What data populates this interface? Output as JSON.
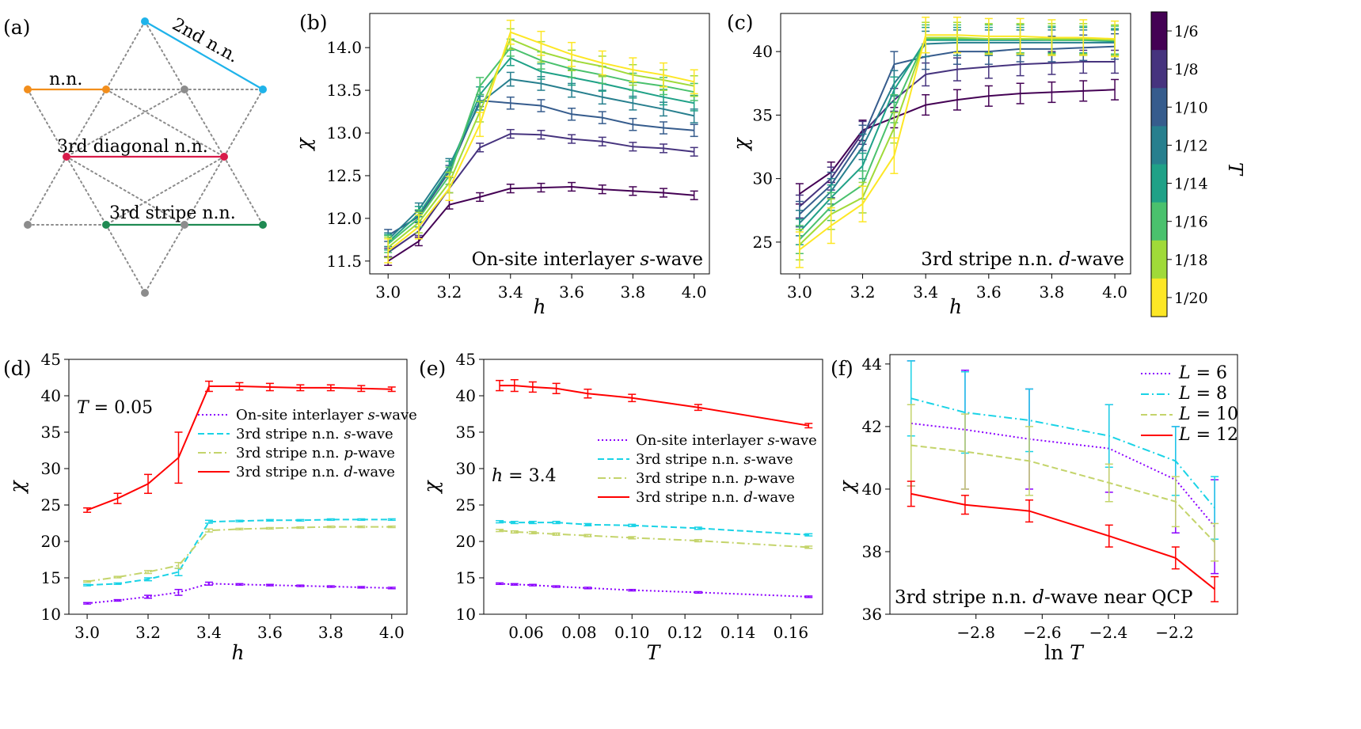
{
  "lattice": {
    "panel_label": "(a)",
    "labels": {
      "nn": "n.n.",
      "nn2": "2nd n.n.",
      "diag3": "3rd diagonal n.n.",
      "stripe3": "3rd stripe n.n."
    },
    "colors": {
      "nn": "#f28e1c",
      "nn2": "#1fb3ea",
      "diag3": "#d81b4a",
      "stripe3": "#1f8a52",
      "site": "#8c8c8c",
      "bond": "#8c8c8c"
    }
  },
  "colorbar": {
    "label": "T",
    "ticks": [
      "1/6",
      "1/8",
      "1/10",
      "1/12",
      "1/14",
      "1/16",
      "1/18",
      "1/20"
    ],
    "colors": [
      "#440154",
      "#46337e",
      "#365c8d",
      "#277f8e",
      "#1fa187",
      "#4ac16d",
      "#a0da39",
      "#fde725"
    ]
  },
  "chart_data": [
    {
      "panel": "(b)",
      "type": "line",
      "annotation": "On-site interlayer s-wave",
      "xlabel": "h",
      "ylabel": "χ",
      "x": [
        3.0,
        3.1,
        3.2,
        3.3,
        3.4,
        3.5,
        3.6,
        3.7,
        3.8,
        3.9,
        4.0
      ],
      "xlim": [
        2.94,
        4.05
      ],
      "ylim": [
        11.35,
        14.4
      ],
      "xticks": [
        "3.0",
        "3.2",
        "3.4",
        "3.6",
        "3.8",
        "4.0"
      ],
      "yticks": [
        "11.5",
        "12.0",
        "12.5",
        "13.0",
        "13.5",
        "14.0"
      ],
      "series": [
        {
          "T": "1/6",
          "values": [
            11.5,
            11.73,
            12.16,
            12.25,
            12.35,
            12.36,
            12.37,
            12.34,
            12.32,
            12.3,
            12.27
          ],
          "err": 0.05
        },
        {
          "T": "1/8",
          "values": [
            11.6,
            11.85,
            12.35,
            12.83,
            12.99,
            12.98,
            12.93,
            12.9,
            12.84,
            12.82,
            12.78
          ],
          "err": 0.05
        },
        {
          "T": "1/10",
          "values": [
            11.8,
            12.02,
            12.55,
            13.38,
            13.35,
            13.32,
            13.22,
            13.18,
            13.1,
            13.06,
            13.03
          ],
          "err": 0.07
        },
        {
          "T": "1/12",
          "values": [
            11.75,
            12.1,
            12.62,
            13.35,
            13.63,
            13.58,
            13.5,
            13.42,
            13.35,
            13.28,
            13.2
          ],
          "err": 0.08
        },
        {
          "T": "1/14",
          "values": [
            11.72,
            12.05,
            12.58,
            13.45,
            13.88,
            13.72,
            13.65,
            13.58,
            13.5,
            13.42,
            13.35
          ],
          "err": 0.09
        },
        {
          "T": "1/16",
          "values": [
            11.7,
            12.0,
            12.5,
            13.55,
            14.0,
            13.85,
            13.75,
            13.68,
            13.6,
            13.55,
            13.48
          ],
          "err": 0.1
        },
        {
          "T": "1/18",
          "values": [
            11.66,
            11.95,
            12.42,
            13.25,
            14.1,
            13.95,
            13.85,
            13.78,
            13.68,
            13.62,
            13.55
          ],
          "err": 0.12
        },
        {
          "T": "1/20",
          "values": [
            11.62,
            11.9,
            12.35,
            13.1,
            14.18,
            14.05,
            13.92,
            13.82,
            13.74,
            13.68,
            13.6
          ],
          "err": 0.14
        }
      ]
    },
    {
      "panel": "(c)",
      "type": "line",
      "annotation": "3rd stripe n.n. d-wave",
      "xlabel": "h",
      "ylabel": "χ",
      "x": [
        3.0,
        3.1,
        3.2,
        3.3,
        3.4,
        3.5,
        3.6,
        3.7,
        3.8,
        3.9,
        4.0
      ],
      "xlim": [
        2.94,
        4.05
      ],
      "ylim": [
        22.5,
        43.0
      ],
      "xticks": [
        "3.0",
        "3.2",
        "3.4",
        "3.6",
        "3.8",
        "4.0"
      ],
      "yticks": [
        "25",
        "30",
        "35",
        "40"
      ],
      "series": [
        {
          "T": "1/6",
          "values": [
            28.8,
            30.5,
            33.8,
            34.8,
            35.8,
            36.2,
            36.5,
            36.7,
            36.8,
            36.9,
            37.0
          ],
          "err": 0.8
        },
        {
          "T": "1/8",
          "values": [
            27.8,
            30.0,
            33.6,
            36.2,
            38.2,
            38.6,
            38.8,
            39.0,
            39.1,
            39.2,
            39.2
          ],
          "err": 0.9
        },
        {
          "T": "1/10",
          "values": [
            27.2,
            29.5,
            33.2,
            39.0,
            39.6,
            40.0,
            40.0,
            40.2,
            40.2,
            40.3,
            40.4
          ],
          "err": 1.0
        },
        {
          "T": "1/12",
          "values": [
            26.5,
            29.0,
            32.5,
            37.5,
            40.6,
            40.7,
            40.7,
            40.7,
            40.7,
            40.7,
            40.7
          ],
          "err": 1.0
        },
        {
          "T": "1/14",
          "values": [
            25.8,
            28.5,
            31.0,
            37.0,
            40.9,
            40.9,
            40.9,
            40.9,
            40.9,
            40.9,
            40.8
          ],
          "err": 1.0
        },
        {
          "T": "1/16",
          "values": [
            25.2,
            27.8,
            29.5,
            35.5,
            41.0,
            41.0,
            41.0,
            41.0,
            40.9,
            40.9,
            40.9
          ],
          "err": 1.1
        },
        {
          "T": "1/18",
          "values": [
            24.8,
            27.2,
            28.5,
            34.0,
            41.1,
            41.1,
            41.0,
            41.0,
            41.0,
            41.0,
            40.9
          ],
          "err": 1.2
        },
        {
          "T": "1/20",
          "values": [
            24.4,
            26.3,
            28.0,
            31.8,
            41.3,
            41.3,
            41.2,
            41.2,
            41.1,
            41.1,
            41.0
          ],
          "err": 1.4
        }
      ]
    },
    {
      "panel": "(d)",
      "type": "line",
      "annotation": "T = 0.05",
      "xlabel": "h",
      "ylabel": "χ",
      "x": [
        3.0,
        3.1,
        3.2,
        3.3,
        3.4,
        3.5,
        3.6,
        3.7,
        3.8,
        3.9,
        4.0
      ],
      "xlim": [
        2.94,
        4.05
      ],
      "ylim": [
        10,
        45
      ],
      "xticks": [
        "3.0",
        "3.2",
        "3.4",
        "3.6",
        "3.8",
        "4.0"
      ],
      "yticks": [
        "10",
        "15",
        "20",
        "25",
        "30",
        "35",
        "40",
        "45"
      ],
      "series": [
        {
          "name": "On-site interlayer s-wave",
          "style": "dotted",
          "color": "#8b00ff",
          "values": [
            11.5,
            11.9,
            12.4,
            13.0,
            14.2,
            14.1,
            14.0,
            13.9,
            13.8,
            13.7,
            13.6
          ],
          "err": [
            0.1,
            0.1,
            0.2,
            0.4,
            0.2,
            0.1,
            0.1,
            0.1,
            0.1,
            0.1,
            0.1
          ]
        },
        {
          "name": "3rd stripe n.n. s-wave",
          "style": "dashed",
          "color": "#1ad3e6",
          "values": [
            14.0,
            14.2,
            14.8,
            15.8,
            22.7,
            22.8,
            22.9,
            22.9,
            23.0,
            23.0,
            23.0
          ],
          "err": [
            0.1,
            0.1,
            0.2,
            0.5,
            0.2,
            0.1,
            0.1,
            0.1,
            0.1,
            0.1,
            0.1
          ]
        },
        {
          "name": "3rd stripe n.n. p-wave",
          "style": "dashdot",
          "color": "#c4d46b",
          "values": [
            14.5,
            15.1,
            15.8,
            16.7,
            21.5,
            21.7,
            21.8,
            21.9,
            22.0,
            22.0,
            22.0
          ],
          "err": [
            0.1,
            0.1,
            0.2,
            0.4,
            0.2,
            0.1,
            0.1,
            0.1,
            0.1,
            0.1,
            0.1
          ]
        },
        {
          "name": "3rd stripe n.n. d-wave",
          "style": "solid",
          "color": "#ff0000",
          "values": [
            24.3,
            25.9,
            27.9,
            31.5,
            41.3,
            41.3,
            41.2,
            41.1,
            41.1,
            41.0,
            40.9
          ],
          "err": [
            0.3,
            0.7,
            1.3,
            3.5,
            0.7,
            0.5,
            0.5,
            0.4,
            0.4,
            0.4,
            0.3
          ]
        }
      ]
    },
    {
      "panel": "(e)",
      "type": "line",
      "annotation": "h = 3.4",
      "xlabel": "T",
      "ylabel": "χ",
      "x": [
        0.05,
        0.0556,
        0.0625,
        0.0714,
        0.0833,
        0.1,
        0.125,
        0.1667
      ],
      "xlim": [
        0.044,
        0.172
      ],
      "ylim": [
        10,
        45
      ],
      "xticks": [
        "0.06",
        "0.08",
        "0.10",
        "0.12",
        "0.14",
        "0.16"
      ],
      "xtickvals": [
        0.06,
        0.08,
        0.1,
        0.12,
        0.14,
        0.16
      ],
      "yticks": [
        "10",
        "15",
        "20",
        "25",
        "30",
        "35",
        "40",
        "45"
      ],
      "series": [
        {
          "name": "On-site interlayer s-wave",
          "style": "dotted",
          "color": "#8b00ff",
          "values": [
            14.2,
            14.1,
            14.0,
            13.8,
            13.6,
            13.3,
            13.0,
            12.4
          ],
          "err": 0.1
        },
        {
          "name": "3rd stripe n.n. s-wave",
          "style": "dashed",
          "color": "#1ad3e6",
          "values": [
            22.7,
            22.6,
            22.6,
            22.6,
            22.3,
            22.2,
            21.8,
            20.9
          ],
          "err": 0.15
        },
        {
          "name": "3rd stripe n.n. p-wave",
          "style": "dashdot",
          "color": "#c4d46b",
          "values": [
            21.5,
            21.3,
            21.2,
            21.0,
            20.8,
            20.5,
            20.1,
            19.2
          ],
          "err": 0.15
        },
        {
          "name": "3rd stripe n.n. d-wave",
          "style": "solid",
          "color": "#ff0000",
          "values": [
            41.4,
            41.4,
            41.2,
            41.0,
            40.3,
            39.7,
            38.4,
            35.9
          ],
          "err": [
            0.7,
            0.8,
            0.7,
            0.7,
            0.6,
            0.5,
            0.4,
            0.3
          ]
        }
      ]
    },
    {
      "panel": "(f)",
      "type": "line",
      "annotation": "3rd stripe n.n. d-wave near QCP",
      "xlabel": "ln T",
      "ylabel": "χ",
      "x": [
        -2.996,
        -2.833,
        -2.639,
        -2.398,
        -2.197,
        -2.079
      ],
      "xlim": [
        -3.06,
        -2.01
      ],
      "ylim": [
        36,
        44.3
      ],
      "xticks": [
        "−2.8",
        "−2.6",
        "−2.4",
        "−2.2"
      ],
      "xtickvals": [
        -2.8,
        -2.6,
        -2.4,
        -2.2
      ],
      "yticks": [
        "36",
        "38",
        "40",
        "42",
        "44"
      ],
      "series": [
        {
          "name": "L = 6",
          "style": "dotted",
          "color": "#8b00ff",
          "values": [
            42.1,
            41.9,
            41.6,
            41.3,
            40.3,
            38.8
          ],
          "err": [
            2.0,
            1.9,
            1.6,
            1.4,
            1.7,
            1.5
          ]
        },
        {
          "name": "L = 8",
          "style": "dashdot",
          "color": "#1ad3e6",
          "values": [
            42.9,
            42.45,
            42.2,
            41.7,
            40.9,
            39.4
          ],
          "err": [
            1.2,
            1.3,
            1.0,
            1.0,
            1.1,
            1.0
          ]
        },
        {
          "name": "L = 10",
          "style": "dashed",
          "color": "#c4d46b",
          "values": [
            41.4,
            41.2,
            40.9,
            40.2,
            39.6,
            38.3
          ],
          "err": [
            1.3,
            1.2,
            1.1,
            0.6,
            0.8,
            0.6
          ]
        },
        {
          "name": "L = 12",
          "style": "solid",
          "color": "#ff0000",
          "values": [
            39.85,
            39.5,
            39.3,
            38.5,
            37.8,
            36.8
          ],
          "err": [
            0.4,
            0.3,
            0.35,
            0.35,
            0.35,
            0.4
          ]
        }
      ]
    }
  ]
}
